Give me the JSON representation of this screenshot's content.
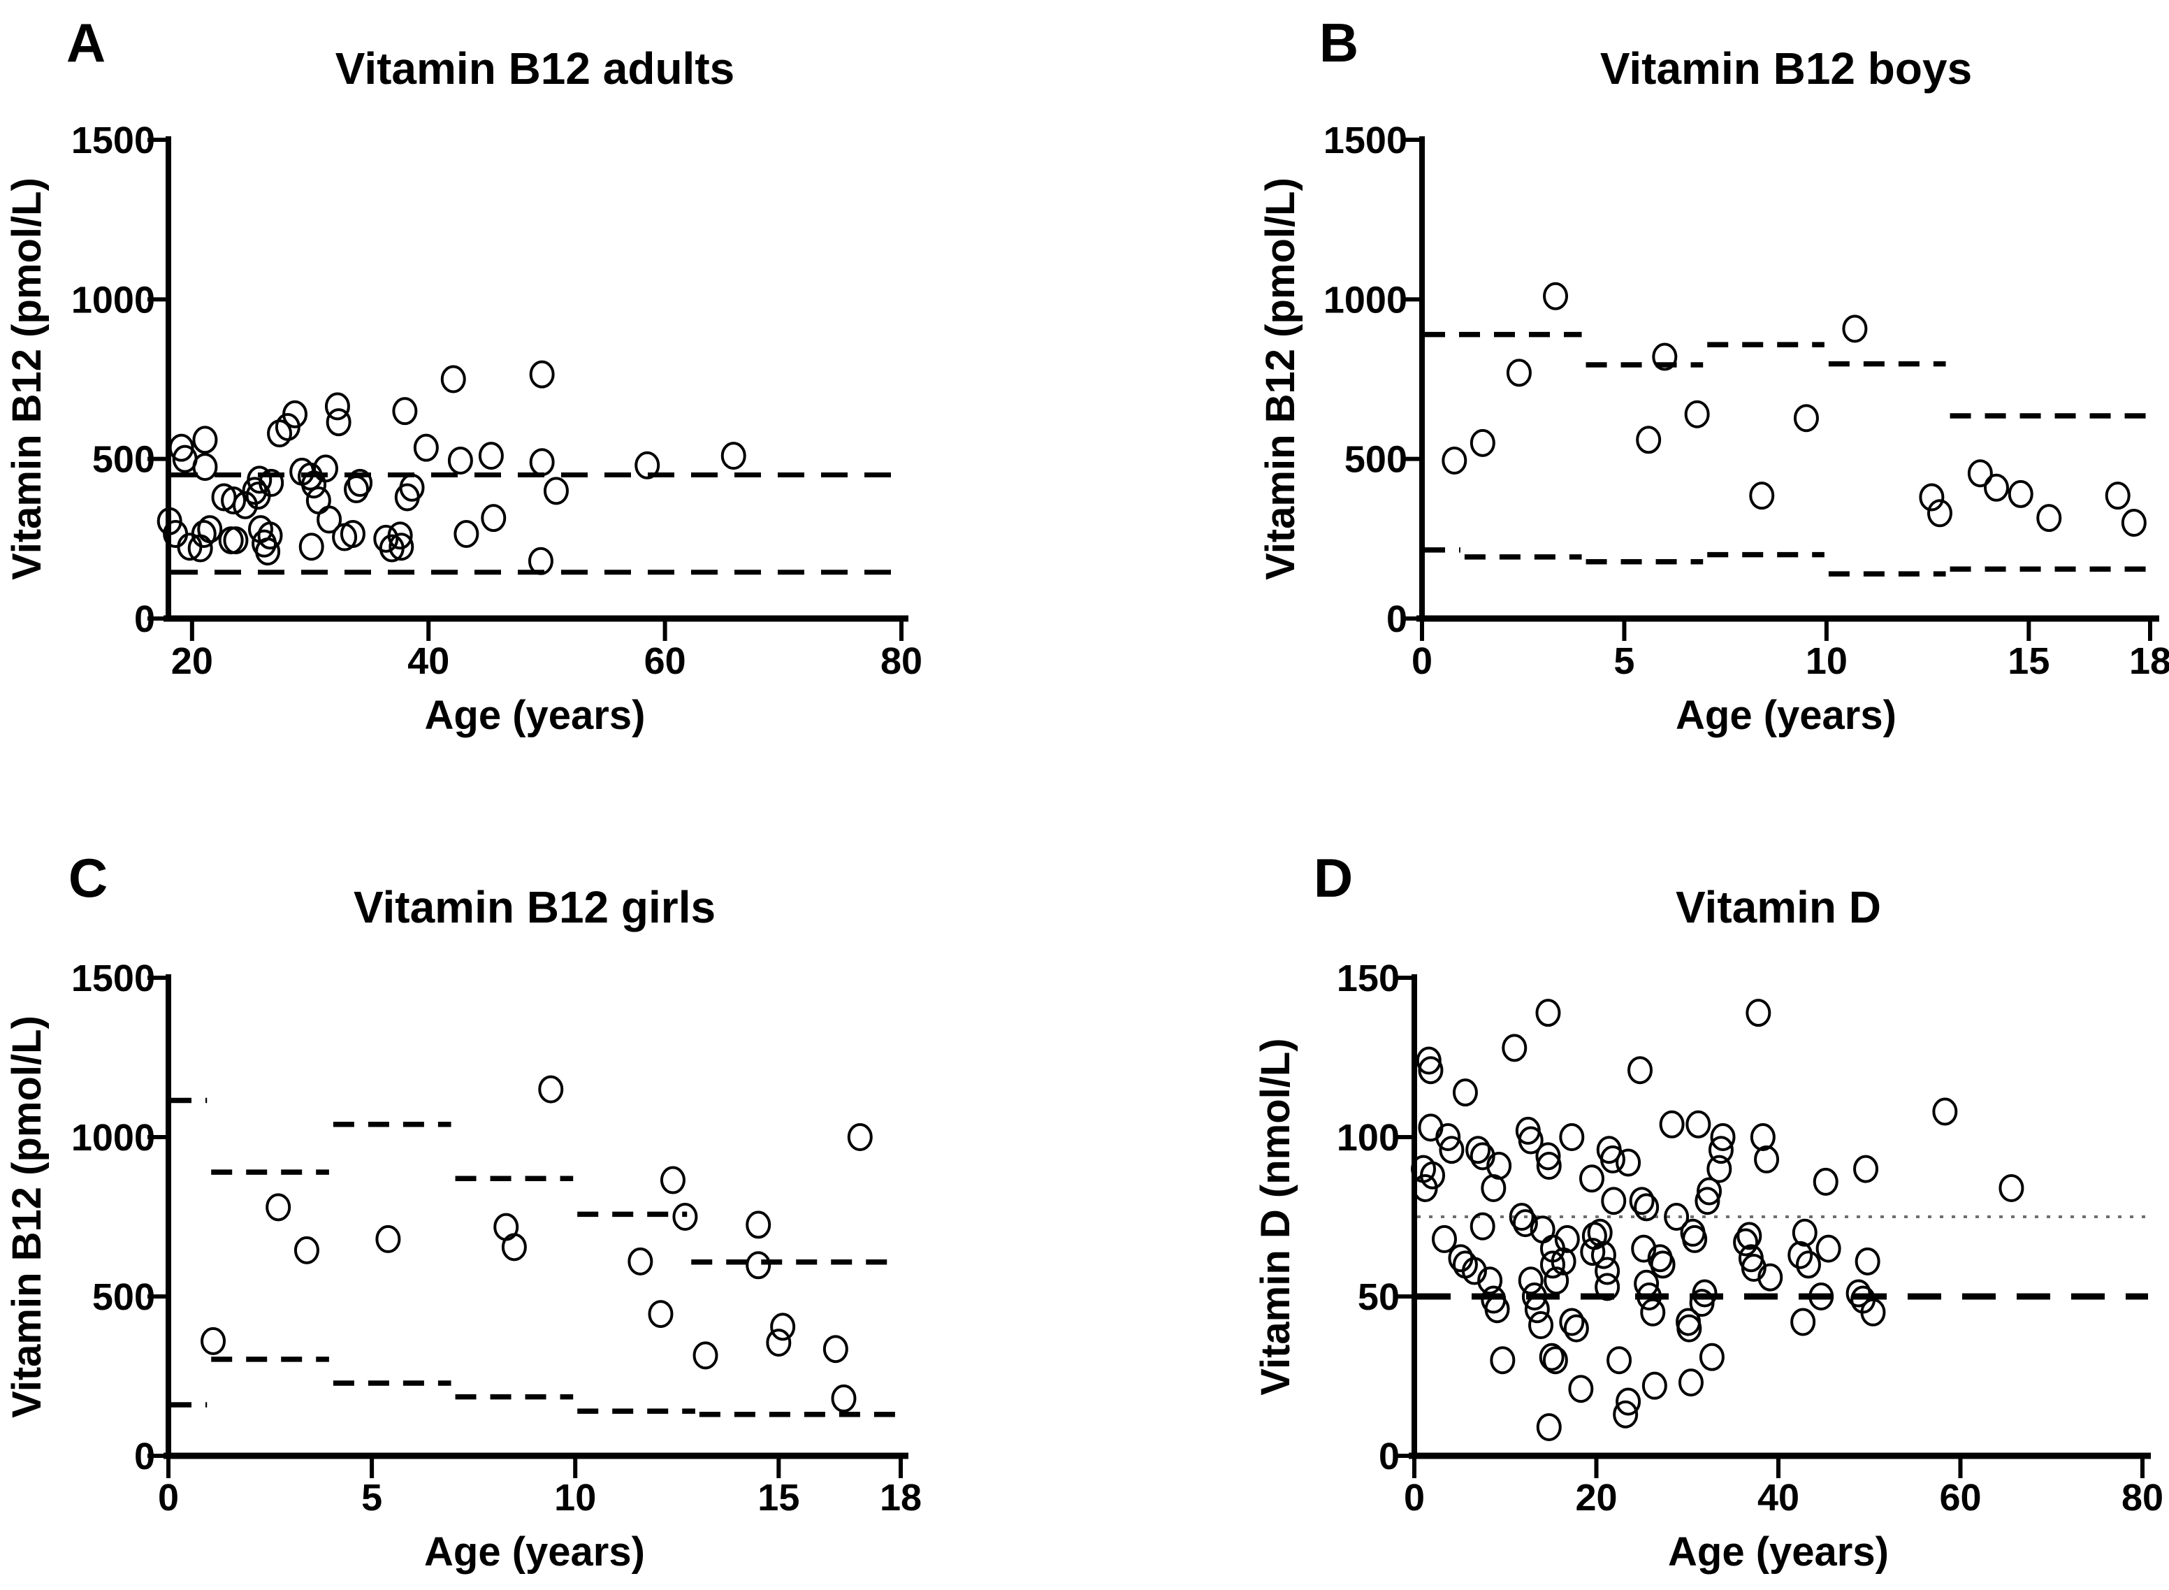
{
  "figure": {
    "background": "#ffffff",
    "ink": "#000000",
    "dotted_line_color": "#6e6e6e",
    "marker": "open-circle"
  },
  "chart_data": [
    {
      "panel_letter": "A",
      "type": "scatter",
      "title": "Vitamin B12 adults",
      "xlabel": "Age (years)",
      "ylabel": "Vitamin B12 (pmol/L)",
      "xlim": [
        18,
        80
      ],
      "ylim": [
        0,
        1500
      ],
      "xticks": [
        20,
        40,
        60,
        80
      ],
      "yticks": [
        0,
        500,
        1000,
        1500
      ],
      "grid": false,
      "legend": "none",
      "ref_lines": [
        {
          "y": 450,
          "style": "dashed",
          "label": "upper reference limit"
        },
        {
          "y": 145,
          "style": "dashed",
          "label": "lower reference limit"
        }
      ],
      "points": [
        [
          18.1,
          305
        ],
        [
          18.6,
          265
        ],
        [
          19.1,
          535
        ],
        [
          19.4,
          500
        ],
        [
          19.8,
          225
        ],
        [
          20.7,
          220
        ],
        [
          21.0,
          265
        ],
        [
          21.1,
          560
        ],
        [
          21.1,
          475
        ],
        [
          21.5,
          280
        ],
        [
          22.7,
          380
        ],
        [
          23.3,
          245
        ],
        [
          23.5,
          370
        ],
        [
          23.7,
          245
        ],
        [
          24.5,
          355
        ],
        [
          25.3,
          400
        ],
        [
          25.6,
          385
        ],
        [
          25.7,
          435
        ],
        [
          25.8,
          280
        ],
        [
          26.1,
          235
        ],
        [
          26.4,
          210
        ],
        [
          26.6,
          260
        ],
        [
          26.7,
          425
        ],
        [
          27.4,
          580
        ],
        [
          28.1,
          600
        ],
        [
          28.7,
          640
        ],
        [
          29.3,
          460
        ],
        [
          30.0,
          445
        ],
        [
          30.1,
          225
        ],
        [
          30.3,
          420
        ],
        [
          30.7,
          370
        ],
        [
          31.3,
          470
        ],
        [
          31.6,
          310
        ],
        [
          32.3,
          665
        ],
        [
          32.4,
          615
        ],
        [
          32.9,
          255
        ],
        [
          33.6,
          265
        ],
        [
          33.9,
          405
        ],
        [
          34.2,
          425
        ],
        [
          36.4,
          250
        ],
        [
          36.9,
          220
        ],
        [
          37.6,
          260
        ],
        [
          37.7,
          225
        ],
        [
          38.0,
          650
        ],
        [
          38.2,
          380
        ],
        [
          38.6,
          410
        ],
        [
          39.8,
          535
        ],
        [
          42.1,
          750
        ],
        [
          42.7,
          495
        ],
        [
          43.2,
          265
        ],
        [
          45.3,
          510
        ],
        [
          45.5,
          315
        ],
        [
          49.5,
          180
        ],
        [
          49.6,
          765
        ],
        [
          49.6,
          490
        ],
        [
          50.8,
          400
        ],
        [
          58.5,
          480
        ],
        [
          65.8,
          510
        ]
      ]
    },
    {
      "panel_letter": "B",
      "type": "scatter",
      "title": "Vitamin B12 boys",
      "xlabel": "Age (years)",
      "ylabel": "Vitamin B12 (pmol/L)",
      "xlim": [
        0,
        18
      ],
      "ylim": [
        0,
        1500
      ],
      "xticks": [
        0,
        5,
        10,
        15,
        18
      ],
      "yticks": [
        0,
        500,
        1000,
        1500
      ],
      "grid": false,
      "legend": "none",
      "ref_steps": {
        "upper": [
          [
            0,
            4,
            890
          ],
          [
            4,
            7,
            795
          ],
          [
            7,
            10,
            858
          ],
          [
            10,
            13,
            798
          ],
          [
            13,
            18,
            635
          ]
        ],
        "lower": [
          [
            0,
            1,
            215
          ],
          [
            1,
            4,
            193
          ],
          [
            4,
            7,
            178
          ],
          [
            7,
            10,
            200
          ],
          [
            10,
            13,
            140
          ],
          [
            13,
            18,
            155
          ]
        ]
      },
      "points": [
        [
          0.8,
          495
        ],
        [
          1.5,
          550
        ],
        [
          2.4,
          770
        ],
        [
          3.3,
          1010
        ],
        [
          5.6,
          560
        ],
        [
          6.0,
          820
        ],
        [
          6.8,
          640
        ],
        [
          8.4,
          385
        ],
        [
          9.5,
          628
        ],
        [
          10.7,
          908
        ],
        [
          12.6,
          380
        ],
        [
          12.8,
          330
        ],
        [
          13.8,
          455
        ],
        [
          14.2,
          410
        ],
        [
          14.8,
          390
        ],
        [
          15.5,
          315
        ],
        [
          17.2,
          385
        ],
        [
          17.6,
          300
        ]
      ]
    },
    {
      "panel_letter": "C",
      "type": "scatter",
      "title": "Vitamin B12 girls",
      "xlabel": "Age (years)",
      "ylabel": "Vitamin B12 (pmol/L)",
      "xlim": [
        0,
        18
      ],
      "ylim": [
        0,
        1500
      ],
      "xticks": [
        0,
        5,
        10,
        15,
        18
      ],
      "yticks": [
        0,
        500,
        1000,
        1500
      ],
      "grid": false,
      "legend": "none",
      "ref_steps": {
        "upper": [
          [
            0,
            1,
            1115
          ],
          [
            1,
            4,
            890
          ],
          [
            4,
            7,
            1040
          ],
          [
            7,
            10,
            870
          ],
          [
            10,
            12.8,
            758
          ],
          [
            12.8,
            18,
            608
          ]
        ],
        "lower": [
          [
            0,
            1,
            160
          ],
          [
            1,
            4,
            303
          ],
          [
            4,
            7,
            228
          ],
          [
            7,
            10,
            185
          ],
          [
            10,
            13,
            140
          ],
          [
            13,
            18,
            130
          ]
        ]
      },
      "points": [
        [
          1.1,
          360
        ],
        [
          2.7,
          780
        ],
        [
          3.4,
          645
        ],
        [
          5.4,
          680
        ],
        [
          8.3,
          718
        ],
        [
          8.5,
          655
        ],
        [
          9.4,
          1150
        ],
        [
          11.6,
          610
        ],
        [
          12.1,
          445
        ],
        [
          12.4,
          865
        ],
        [
          12.7,
          750
        ],
        [
          13.2,
          315
        ],
        [
          14.5,
          725
        ],
        [
          14.5,
          598
        ],
        [
          15.0,
          355
        ],
        [
          15.1,
          405
        ],
        [
          16.4,
          335
        ],
        [
          16.6,
          180
        ],
        [
          17.0,
          1000
        ]
      ]
    },
    {
      "panel_letter": "D",
      "type": "scatter",
      "title": "Vitamin D",
      "xlabel": "Age (years)",
      "ylabel": "Vitamin D (nmol/L)",
      "xlim": [
        0,
        80
      ],
      "ylim": [
        0,
        150
      ],
      "xticks": [
        0,
        20,
        40,
        60,
        80
      ],
      "yticks": [
        0,
        50,
        100,
        150
      ],
      "grid": false,
      "legend": "none",
      "ref_lines": [
        {
          "y": 75,
          "style": "dotted",
          "label": "sufficiency threshold"
        },
        {
          "y": 50,
          "style": "dashed",
          "label": "deficiency threshold"
        }
      ],
      "points": [
        [
          1.0,
          90
        ],
        [
          1.2,
          84
        ],
        [
          1.6,
          124
        ],
        [
          1.8,
          121
        ],
        [
          1.8,
          103
        ],
        [
          2.0,
          88
        ],
        [
          3.3,
          68
        ],
        [
          3.7,
          100
        ],
        [
          4.1,
          96
        ],
        [
          5.1,
          62
        ],
        [
          5.6,
          114
        ],
        [
          5.6,
          60
        ],
        [
          6.6,
          58
        ],
        [
          7.0,
          96
        ],
        [
          7.5,
          94
        ],
        [
          7.5,
          72
        ],
        [
          8.3,
          55
        ],
        [
          8.7,
          84
        ],
        [
          8.7,
          49
        ],
        [
          9.1,
          46
        ],
        [
          9.3,
          91
        ],
        [
          9.7,
          30
        ],
        [
          11.0,
          128
        ],
        [
          11.8,
          75
        ],
        [
          12.2,
          73
        ],
        [
          12.5,
          102
        ],
        [
          12.8,
          99
        ],
        [
          12.8,
          55
        ],
        [
          13.2,
          50
        ],
        [
          13.5,
          46
        ],
        [
          13.9,
          41
        ],
        [
          14.1,
          71
        ],
        [
          14.7,
          139
        ],
        [
          14.7,
          94
        ],
        [
          14.8,
          91
        ],
        [
          14.8,
          9
        ],
        [
          15.2,
          65
        ],
        [
          15.2,
          60
        ],
        [
          15.6,
          55
        ],
        [
          15.1,
          31
        ],
        [
          15.5,
          30
        ],
        [
          16.4,
          61
        ],
        [
          16.8,
          68
        ],
        [
          17.3,
          100
        ],
        [
          17.3,
          42
        ],
        [
          17.8,
          40
        ],
        [
          18.3,
          21
        ],
        [
          19.5,
          87
        ],
        [
          19.6,
          64
        ],
        [
          19.8,
          69
        ],
        [
          20.4,
          70
        ],
        [
          20.8,
          63
        ],
        [
          21.2,
          58
        ],
        [
          21.2,
          53
        ],
        [
          21.4,
          96
        ],
        [
          21.8,
          93
        ],
        [
          21.9,
          80
        ],
        [
          22.5,
          30
        ],
        [
          23.2,
          13
        ],
        [
          23.5,
          17
        ],
        [
          23.5,
          92
        ],
        [
          24.8,
          121
        ],
        [
          25.0,
          80
        ],
        [
          25.2,
          65
        ],
        [
          25.5,
          78
        ],
        [
          25.5,
          54
        ],
        [
          25.8,
          50
        ],
        [
          26.2,
          45
        ],
        [
          26.4,
          22
        ],
        [
          27.0,
          62
        ],
        [
          27.3,
          60
        ],
        [
          28.3,
          104
        ],
        [
          28.8,
          75
        ],
        [
          30.1,
          42
        ],
        [
          30.2,
          40
        ],
        [
          30.4,
          23
        ],
        [
          30.6,
          70
        ],
        [
          30.8,
          68
        ],
        [
          31.2,
          104
        ],
        [
          31.6,
          48
        ],
        [
          31.9,
          51
        ],
        [
          32.2,
          80
        ],
        [
          32.4,
          83
        ],
        [
          32.7,
          31
        ],
        [
          33.5,
          90
        ],
        [
          33.7,
          96
        ],
        [
          33.9,
          100
        ],
        [
          36.4,
          67
        ],
        [
          36.8,
          69
        ],
        [
          37.0,
          62
        ],
        [
          37.3,
          59
        ],
        [
          37.8,
          139
        ],
        [
          38.3,
          100
        ],
        [
          38.7,
          93
        ],
        [
          39.1,
          56
        ],
        [
          42.4,
          63
        ],
        [
          42.7,
          42
        ],
        [
          42.9,
          70
        ],
        [
          43.3,
          60
        ],
        [
          44.7,
          50
        ],
        [
          45.2,
          86
        ],
        [
          45.5,
          65
        ],
        [
          48.8,
          51
        ],
        [
          49.3,
          49
        ],
        [
          49.6,
          90
        ],
        [
          49.8,
          61
        ],
        [
          50.4,
          45
        ],
        [
          58.3,
          108
        ],
        [
          65.6,
          84
        ]
      ]
    }
  ]
}
